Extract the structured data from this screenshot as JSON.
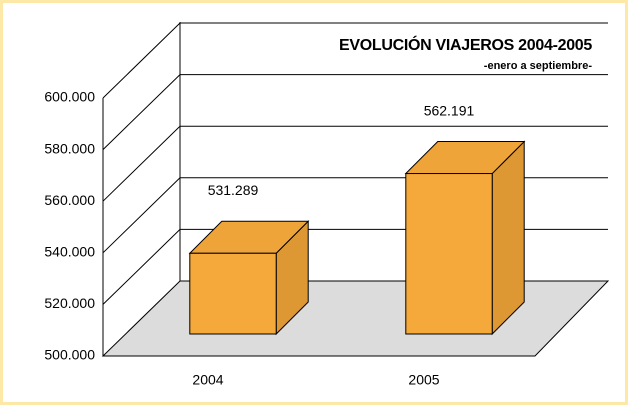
{
  "chart_data": {
    "type": "bar3d",
    "title": "EVOLUCIÓN VIAJEROS 2004-2005",
    "subtitle": "-enero a septiembre-",
    "categories": [
      "2004",
      "2005"
    ],
    "values": [
      531289,
      562191
    ],
    "value_labels": [
      "531.289",
      "562.191"
    ],
    "color": "#f5a93a",
    "ylim": [
      500000,
      600000
    ],
    "yticks": [
      {
        "value": 500000,
        "label": "500.000"
      },
      {
        "value": 520000,
        "label": "520.000"
      },
      {
        "value": 540000,
        "label": "540.000"
      },
      {
        "value": 560000,
        "label": "560.000"
      },
      {
        "value": 580000,
        "label": "580.000"
      },
      {
        "value": 600000,
        "label": "600.000"
      }
    ],
    "grid": true
  }
}
